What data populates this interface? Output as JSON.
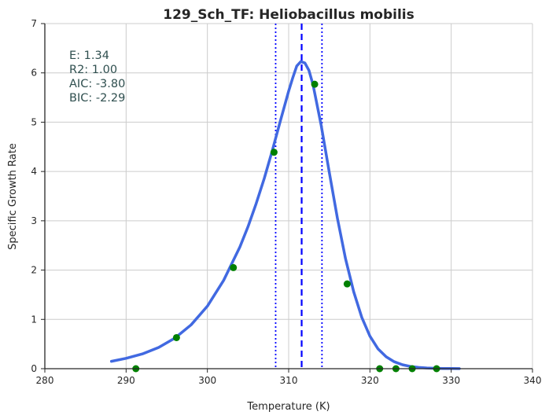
{
  "chart_data": {
    "type": "line",
    "title": "129_Sch_TF: Heliobacillus mobilis",
    "xlabel": "Temperature (K)",
    "ylabel": "Specific Growth Rate",
    "xlim": [
      280,
      340
    ],
    "ylim": [
      0,
      7
    ],
    "x_ticks": [
      280,
      290,
      300,
      310,
      320,
      330,
      340
    ],
    "y_ticks": [
      0,
      1,
      2,
      3,
      4,
      5,
      6,
      7
    ],
    "grid": true,
    "stats": [
      {
        "label": "E:",
        "value": "1.34",
        "text": "E:  1.34"
      },
      {
        "label": "R2:",
        "value": "1.00",
        "text": "R2:  1.00"
      },
      {
        "label": "AIC:",
        "value": "-3.80",
        "text": "AIC: -3.80"
      },
      {
        "label": "BIC:",
        "value": "-2.29",
        "text": "BIC: -2.29"
      }
    ],
    "fit_curve": {
      "color": "#4169e1",
      "x": [
        288.2,
        290,
        292,
        294,
        296,
        298,
        300,
        302,
        304,
        305,
        306,
        307,
        308,
        309,
        310,
        310.5,
        311,
        311.5,
        312,
        312.5,
        313,
        314,
        315,
        316,
        317,
        318,
        319,
        320,
        321,
        322,
        323,
        324,
        325,
        326,
        327,
        328,
        329,
        330,
        331
      ],
      "y": [
        0.15,
        0.21,
        0.3,
        0.43,
        0.62,
        0.89,
        1.27,
        1.79,
        2.47,
        2.88,
        3.35,
        3.86,
        4.43,
        5.04,
        5.63,
        5.9,
        6.14,
        6.23,
        6.2,
        6.05,
        5.76,
        4.94,
        3.98,
        3.05,
        2.23,
        1.56,
        1.04,
        0.66,
        0.4,
        0.24,
        0.14,
        0.08,
        0.045,
        0.025,
        0.014,
        0.008,
        0.005,
        0.003,
        0.002
      ]
    },
    "observations": {
      "color": "#008000",
      "x": [
        291.2,
        296.2,
        303.2,
        308.2,
        313.2,
        317.2,
        321.2,
        323.2,
        325.2,
        328.2
      ],
      "y": [
        0.0,
        0.63,
        2.05,
        4.39,
        5.77,
        1.72,
        0.0,
        0.0,
        0.0,
        0.0
      ]
    },
    "vertical_lines": [
      {
        "x": 311.6,
        "style": "dashed",
        "color": "#0000ff"
      },
      {
        "x": 308.4,
        "style": "dotted",
        "color": "#0000ff"
      },
      {
        "x": 314.1,
        "style": "dotted",
        "color": "#0000ff"
      }
    ]
  }
}
